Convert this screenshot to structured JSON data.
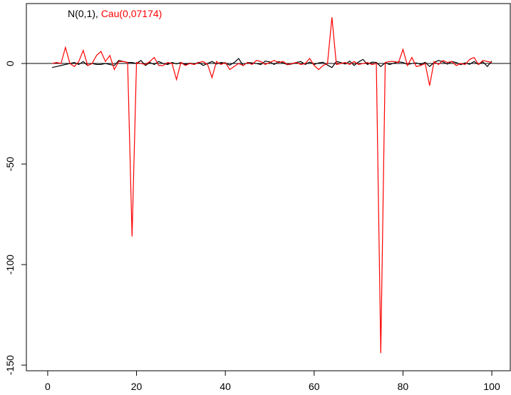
{
  "chart_data": {
    "type": "line",
    "legend_separator": ",",
    "x": [
      1,
      2,
      3,
      4,
      5,
      6,
      7,
      8,
      9,
      10,
      11,
      12,
      13,
      14,
      15,
      16,
      17,
      18,
      19,
      20,
      21,
      22,
      23,
      24,
      25,
      26,
      27,
      28,
      29,
      30,
      31,
      32,
      33,
      34,
      35,
      36,
      37,
      38,
      39,
      40,
      41,
      42,
      43,
      44,
      45,
      46,
      47,
      48,
      49,
      50,
      51,
      52,
      53,
      54,
      55,
      56,
      57,
      58,
      59,
      60,
      61,
      62,
      63,
      64,
      65,
      66,
      67,
      68,
      69,
      70,
      71,
      72,
      73,
      74,
      75,
      76,
      77,
      78,
      79,
      80,
      81,
      82,
      83,
      84,
      85,
      86,
      87,
      88,
      89,
      90,
      91,
      92,
      93,
      94,
      95,
      96,
      97,
      98,
      99,
      100
    ],
    "series": [
      {
        "name": "N(0,1)",
        "color": "#000000",
        "values": [
          -2,
          -1.5,
          -1,
          -0.5,
          0,
          0.5,
          -0.5,
          1,
          -1,
          0,
          -0.5,
          -0.5,
          0,
          -0.5,
          -1,
          1.5,
          1,
          0.5,
          0.5,
          0,
          1.5,
          -1,
          0.5,
          -0.5,
          1,
          0,
          -0.5,
          0.5,
          -0.2,
          0.5,
          -0.5,
          0.2,
          -0.3,
          0.6,
          -1,
          0,
          1,
          -0.3,
          0.5,
          0.2,
          -0.8,
          0.5,
          2.5,
          -1,
          0.5,
          0.3,
          0,
          -0.5,
          1.2,
          0.8,
          -0.5,
          1,
          0.3,
          -0.6,
          -0.2,
          0.5,
          1,
          -0.5,
          0.7,
          -0.5,
          0.3,
          0.6,
          -0.8,
          -2,
          1,
          0.5,
          -0.3,
          1.2,
          -1,
          0.8,
          2,
          -0.5,
          0.7,
          0.5,
          -1.5,
          0.3,
          -0.5,
          0.2,
          0.8,
          0.5,
          -0.5,
          0,
          0.3,
          -0.5,
          0.6,
          -1.5,
          0.5,
          1.5,
          0.8,
          -0.3,
          1,
          0.5,
          -0.6,
          0.3,
          -0.4,
          1,
          -0.5,
          0.8,
          -1.5,
          1.2
        ]
      },
      {
        "name": "Cau(0,07174)",
        "color": "#ff0000",
        "values": [
          0,
          0.5,
          0,
          8,
          0,
          -1.5,
          1,
          6.5,
          -1,
          0,
          4,
          6,
          1,
          4,
          -3,
          1,
          1,
          0.5,
          -86,
          0.5,
          0,
          -0.5,
          1,
          3,
          -1,
          -1,
          0.5,
          0,
          -8,
          0.5,
          -1,
          0,
          -0.5,
          0.5,
          1,
          -0.5,
          -7,
          1,
          -0.5,
          0.5,
          -3,
          -1.5,
          0,
          -1,
          0.5,
          -0.5,
          1.5,
          1,
          -0.5,
          0.5,
          1.5,
          0.5,
          1,
          -0.5,
          0,
          0.5,
          -0.5,
          0,
          2.5,
          -1,
          -3,
          -1,
          0,
          23,
          -0.5,
          0,
          0.5,
          -0.5,
          1,
          -0.5,
          0,
          0.5,
          -0.5,
          0,
          -144,
          0.5,
          1,
          1,
          0.5,
          7,
          -1,
          3,
          -1.5,
          -1,
          0,
          -11,
          1,
          -0.5,
          1.5,
          0.5,
          1,
          -1,
          0,
          -0.5,
          2,
          3,
          -0.5,
          1.5,
          1,
          0.5
        ]
      }
    ],
    "reference_line": 0,
    "xlim": [
      -4.8,
      104.16
    ],
    "xticks": [
      0,
      20,
      40,
      60,
      80,
      100
    ],
    "ylim": [
      29.8,
      -152.8
    ],
    "yticks": [
      0,
      -50,
      -100,
      -150
    ]
  }
}
